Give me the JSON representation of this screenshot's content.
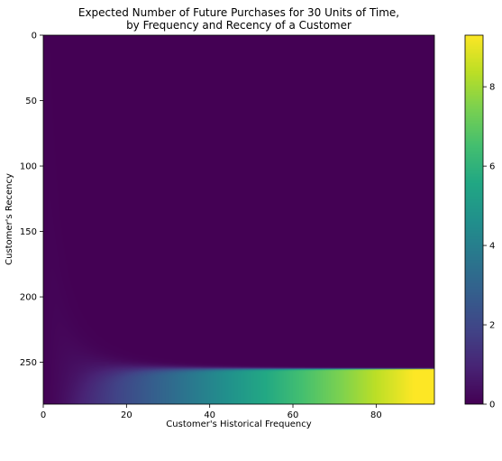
{
  "chart_data": {
    "type": "heatmap",
    "title_line1": "Expected Number of Future Purchases for 30 Units of Time,",
    "title_line2": "by Frequency and Recency of a Customer",
    "xlabel": "Customer's Historical Frequency",
    "ylabel": "Customer's Recency",
    "xlim": [
      0,
      94
    ],
    "ylim_top_to_bottom": [
      0,
      282
    ],
    "x_ticks": [
      "0",
      "20",
      "40",
      "60",
      "80"
    ],
    "y_ticks": [
      "0",
      "50",
      "100",
      "150",
      "200",
      "250"
    ],
    "colorbar": {
      "range": [
        0,
        9.3
      ],
      "ticks": [
        "0",
        "2",
        "4",
        "6",
        "8"
      ],
      "colormap": "viridis"
    }
  }
}
